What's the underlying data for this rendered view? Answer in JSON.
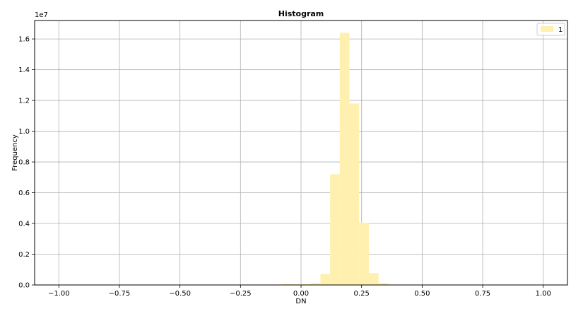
{
  "chart_data": {
    "type": "bar",
    "title": "Histogram",
    "xlabel": "DN",
    "ylabel": "Frequency",
    "y_offset_text": "1e7",
    "xlim": [
      -1.1,
      1.1
    ],
    "ylim": [
      0,
      1.72
    ],
    "xticks": [
      -1.0,
      -0.75,
      -0.5,
      -0.25,
      0.0,
      0.25,
      0.5,
      0.75,
      1.0
    ],
    "xtick_labels": [
      "−1.00",
      "−0.75",
      "−0.50",
      "−0.25",
      "0.00",
      "0.25",
      "0.50",
      "0.75",
      "1.00"
    ],
    "yticks": [
      0.0,
      0.2,
      0.4,
      0.6,
      0.8,
      1.0,
      1.2,
      1.4,
      1.6
    ],
    "ytick_labels": [
      "0.0",
      "0.2",
      "0.4",
      "0.6",
      "0.8",
      "1.0",
      "1.2",
      "1.4",
      "1.6"
    ],
    "grid": true,
    "legend_position": "top-right",
    "bar_color": "#fff0b0",
    "series": [
      {
        "name": "1",
        "bin_edges": [
          -0.12,
          -0.08,
          -0.04,
          0.0,
          0.04,
          0.08,
          0.12,
          0.16,
          0.2,
          0.24,
          0.28,
          0.32,
          0.36,
          0.4
        ],
        "values": [
          0.003,
          0.007,
          0.005,
          0.005,
          0.012,
          0.072,
          0.72,
          1.64,
          1.18,
          0.405,
          0.077,
          0.012,
          0.003
        ]
      }
    ]
  }
}
